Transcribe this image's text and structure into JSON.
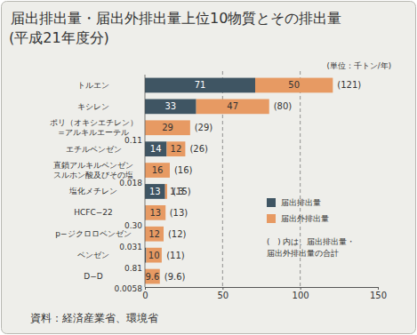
{
  "chart_data": {
    "type": "bar",
    "orientation": "horizontal",
    "stacked": true,
    "data_labels": true,
    "grid": true,
    "legend": "right",
    "title": "届出排出量・届出外排出量上位10物質とその排出量",
    "subtitle": "(平成21年度分)",
    "unit_label": "(単位：千トン/年)",
    "source": "資料：経済産業省、環境省",
    "annotations": [
      "(　) 内は、届出排出量・",
      "届出外排出量の合計"
    ],
    "categories": [
      "トルエン",
      "キシレン",
      "ポリ（オキシエチレン）\n=アルキルエーテル",
      "エチルベンゼン",
      "直鎖アルキルベンゼン\nスルホン酸及びその塩",
      "塩化メチレン",
      "HCFC−22",
      "p−ジクロロベンゼン",
      "ベンゼン",
      "D−D"
    ],
    "series": [
      {
        "name": "届出排出量",
        "color": "#3f5563",
        "values": [
          71,
          33,
          0.11,
          14,
          0.018,
          13,
          0.3,
          0.031,
          0.81,
          0.0058
        ],
        "value_labels": [
          "71",
          "33",
          "0.11",
          "14",
          "0.018",
          "13",
          "0.30",
          "0.031",
          "0.81",
          "0.0058"
        ]
      },
      {
        "name": "届出外排出量",
        "color": "#e79a63",
        "values": [
          50,
          47,
          29,
          12,
          16,
          1.3,
          13,
          12,
          10,
          9.6
        ]
      }
    ],
    "totals": [
      121,
      80,
      29,
      26,
      16,
      15,
      13,
      12,
      11,
      9.6
    ],
    "total_labels": [
      "(121)",
      "(80)",
      "(29)",
      "(26)",
      "(16)",
      "(15)",
      "(13)",
      "(12)",
      "(11)",
      "(9.6)"
    ],
    "xlim": [
      0,
      150
    ],
    "xticks": [
      0,
      50,
      100,
      150
    ]
  }
}
